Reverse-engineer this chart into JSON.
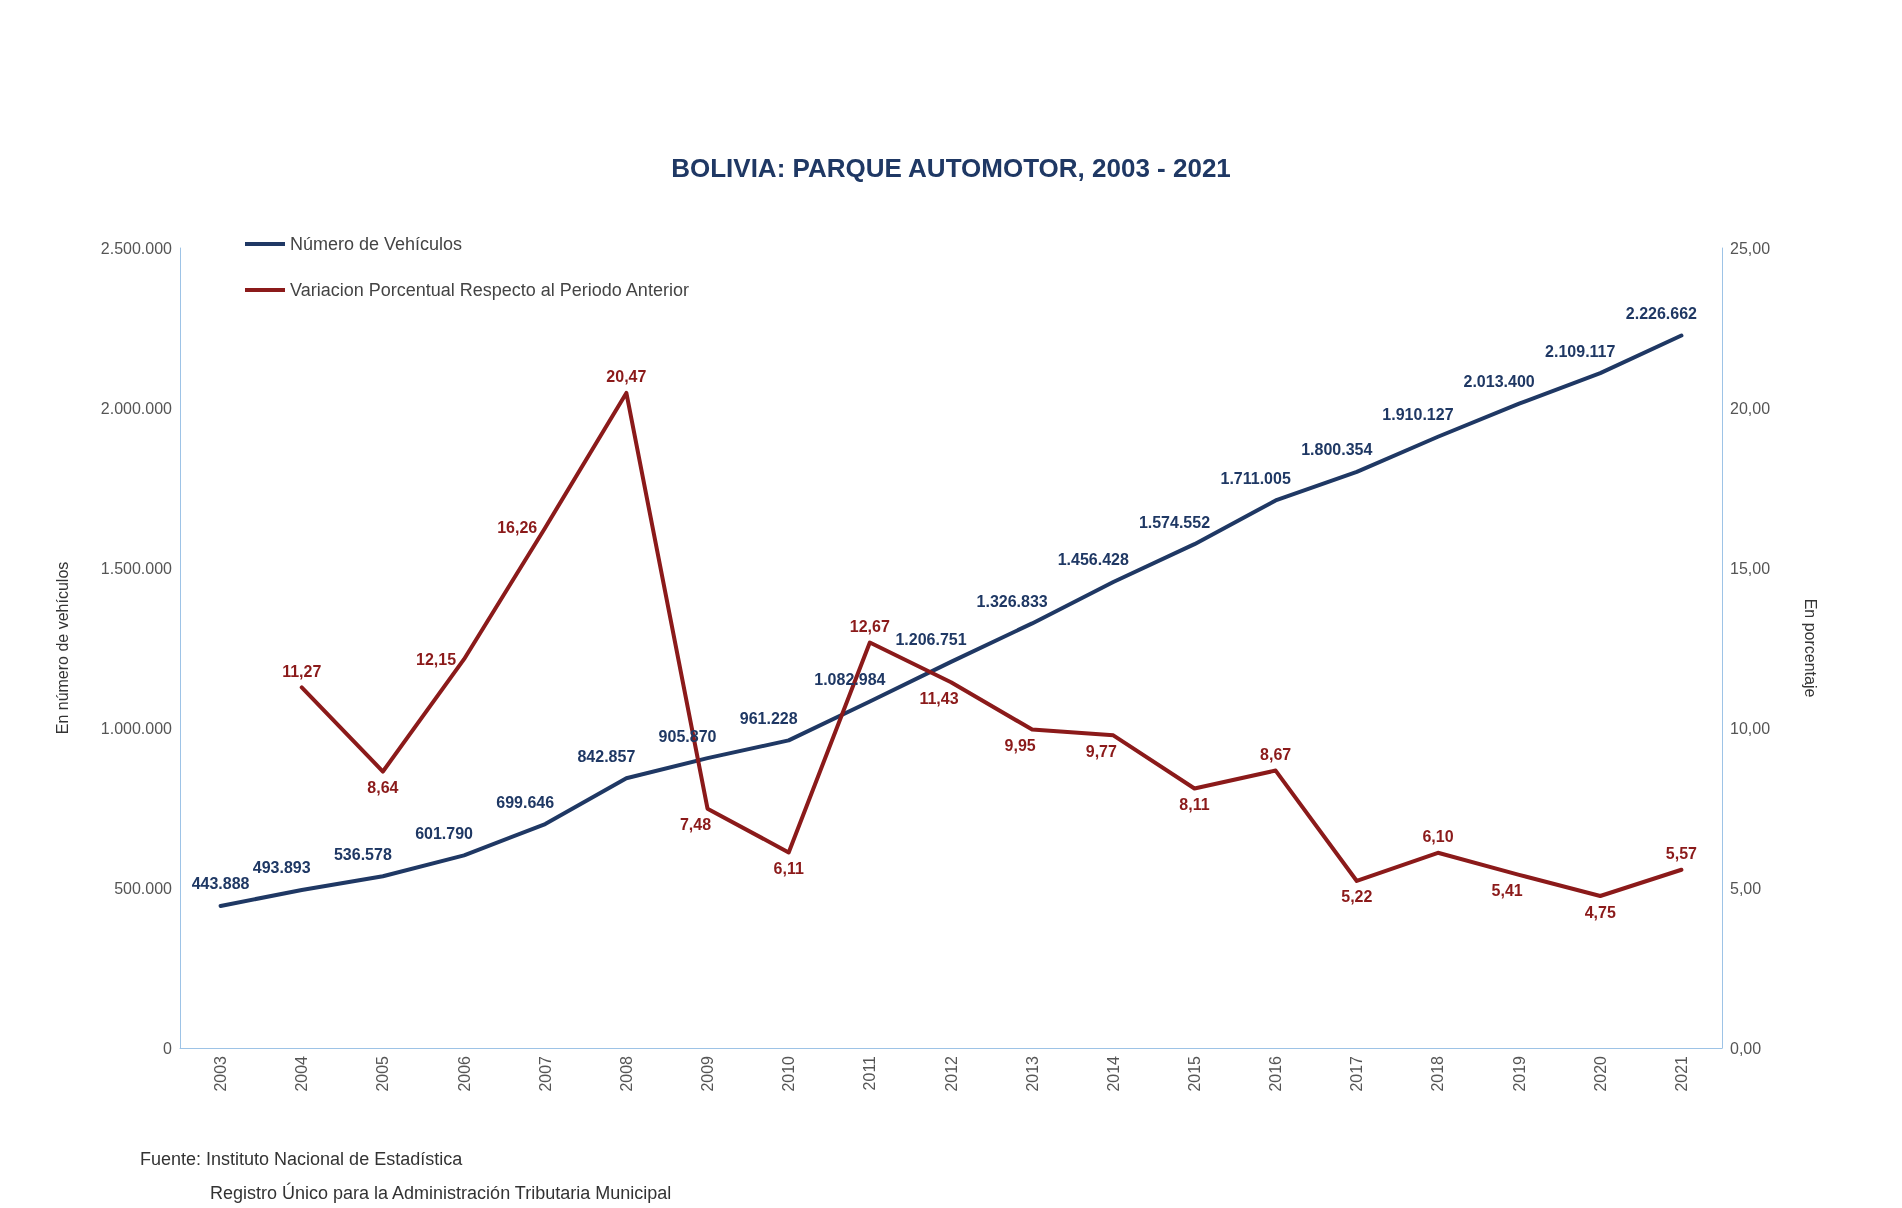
{
  "chart_data": {
    "type": "line",
    "title": "BOLIVIA: PARQUE AUTOMOTOR, 2003 - 2021",
    "ylabel": "En número de vehículos",
    "y2label": "En porcentaje",
    "categories": [
      "2003",
      "2004",
      "2005",
      "2006",
      "2007",
      "2008",
      "2009",
      "2010",
      "2011",
      "2012",
      "2013",
      "2014",
      "2015",
      "2016",
      "2017",
      "2018",
      "2019",
      "2020",
      "2021"
    ],
    "series": [
      {
        "name": "Número de Vehículos",
        "color": "#1f3864",
        "values": [
          443888,
          493893,
          536578,
          601790,
          699646,
          842857,
          905870,
          961228,
          1082984,
          1206751,
          1326833,
          1456428,
          1574552,
          1711005,
          1800354,
          1910127,
          2013400,
          2109117,
          2226662
        ],
        "value_labels": [
          "443.888",
          "493.893",
          "536.578",
          "601.790",
          "699.646",
          "842.857",
          "905.870",
          "961.228",
          "1.082.984",
          "1.206.751",
          "1.326.833",
          "1.456.428",
          "1.574.552",
          "1.711.005",
          "1.800.354",
          "1.910.127",
          "2.013.400",
          "2.109.117",
          "2.226.662"
        ]
      },
      {
        "name": "Variacion Porcentual Respecto al Periodo Anterior",
        "color": "#8b1a1a",
        "axis": "y2",
        "values": [
          null,
          11.27,
          8.64,
          12.15,
          16.26,
          20.47,
          7.48,
          6.11,
          12.67,
          11.43,
          9.95,
          9.77,
          8.11,
          8.67,
          5.22,
          6.1,
          5.41,
          4.75,
          5.57
        ],
        "value_labels": [
          null,
          "11,27",
          "8,64",
          "12,15",
          "16,26",
          "20,47",
          "7,48",
          "6,11",
          "12,67",
          "11,43",
          "9,95",
          "9,77",
          "8,11",
          "8,67",
          "5,22",
          "6,10",
          "5,41",
          "4,75",
          "5,57"
        ]
      }
    ],
    "ylim": [
      0,
      2500000
    ],
    "yticks": [
      {
        "value": 0,
        "label": "0"
      },
      {
        "value": 500000,
        "label": "500.000"
      },
      {
        "value": 1000000,
        "label": "1.000.000"
      },
      {
        "value": 1500000,
        "label": "1.500.000"
      },
      {
        "value": 2000000,
        "label": "2.000.000"
      },
      {
        "value": 2500000,
        "label": "2.500.000"
      }
    ],
    "y2lim": [
      0,
      25
    ],
    "y2ticks": [
      {
        "value": 0,
        "label": "0,00"
      },
      {
        "value": 5,
        "label": "5,00"
      },
      {
        "value": 10,
        "label": "10,00"
      },
      {
        "value": 15,
        "label": "15,00"
      },
      {
        "value": 20,
        "label": "20,00"
      },
      {
        "value": 25,
        "label": "25,00"
      }
    ],
    "grid": false,
    "legend": "top left",
    "marker": "none",
    "line_style": "solid",
    "annotations": [
      "Fuente: Instituto Nacional de Estadística",
      "Registro Único para la Administración Tributaria Municipal"
    ]
  }
}
